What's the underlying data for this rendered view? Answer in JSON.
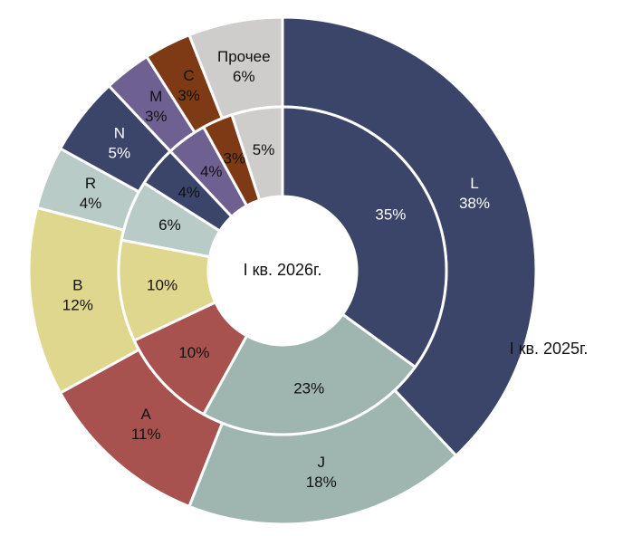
{
  "chart_data": {
    "type": "pie",
    "variant": "double-donut",
    "rings": [
      {
        "name": "I кв. 2025г.",
        "position": "outer",
        "slices": [
          {
            "category": "L",
            "value": 38,
            "label": "38%",
            "color": "#3b4569"
          },
          {
            "category": "J",
            "value": 18,
            "label": "18%",
            "color": "#9fb5b0"
          },
          {
            "category": "A",
            "value": 11,
            "label": "11%",
            "color": "#a8524f"
          },
          {
            "category": "B",
            "value": 12,
            "label": "12%",
            "color": "#e0d78e"
          },
          {
            "category": "R",
            "value": 4,
            "label": "4%",
            "color": "#b9cbc7"
          },
          {
            "category": "N",
            "value": 5,
            "label": "5%",
            "color": "#3b4569"
          },
          {
            "category": "M",
            "value": 3,
            "label": "3%",
            "color": "#6e6192"
          },
          {
            "category": "C",
            "value": 3,
            "label": "3%",
            "color": "#7e3a14"
          },
          {
            "category": "Прочее",
            "value": 6,
            "label": "6%",
            "color": "#cfcccc"
          }
        ]
      },
      {
        "name": "I кв. 2026г.",
        "position": "inner",
        "slices": [
          {
            "category": "L",
            "value": 35,
            "label": "35%",
            "color": "#3b4569"
          },
          {
            "category": "J",
            "value": 23,
            "label": "23%",
            "color": "#9fb5b0"
          },
          {
            "category": "A",
            "value": 10,
            "label": "10%",
            "color": "#a8524f"
          },
          {
            "category": "B",
            "value": 10,
            "label": "10%",
            "color": "#e0d78e"
          },
          {
            "category": "R",
            "value": 6,
            "label": "6%",
            "color": "#b9cbc7"
          },
          {
            "category": "N",
            "value": 4,
            "label": "4%",
            "color": "#3b4569"
          },
          {
            "category": "M",
            "value": 4,
            "label": "4%",
            "color": "#6e6192"
          },
          {
            "category": "C",
            "value": 3,
            "label": "3%",
            "color": "#7e3a14"
          },
          {
            "category": "Прочее",
            "value": 5,
            "label": "5%",
            "color": "#cfcccc"
          }
        ]
      }
    ]
  }
}
